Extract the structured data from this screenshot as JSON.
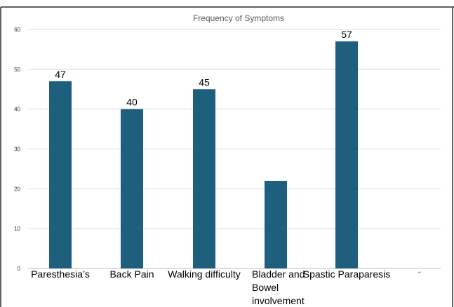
{
  "chart_data": {
    "type": "bar",
    "title": "Frequency of Symptoms",
    "categories": [
      "Paresthesia’s",
      "Back Pain",
      "Walking difficulty",
      "Bladder and Bowel involvement",
      "Spastic Paraparesis"
    ],
    "category_label_lines": [
      [
        "Paresthesia’s"
      ],
      [
        "Back Pain"
      ],
      [
        "Walking difficulty"
      ],
      [
        "Bladder and",
        "Bowel",
        "involvement"
      ],
      [
        "Spastic Paraparesis"
      ]
    ],
    "values": [
      47,
      40,
      45,
      22,
      57
    ],
    "data_labels": [
      "47",
      "40",
      "45",
      "",
      "57"
    ],
    "yticks": [
      0,
      10,
      20,
      30,
      40,
      50,
      60
    ],
    "ylim": [
      0,
      60
    ],
    "xlabel": "",
    "ylabel": "",
    "grid": true,
    "legend": "none",
    "colors": {
      "bar": "#1d5f7d",
      "grid": "#d9d9d9",
      "axis": "#bfbfbf",
      "frame": "#2b2b2b",
      "text": "#000000",
      "title": "#595959"
    }
  }
}
